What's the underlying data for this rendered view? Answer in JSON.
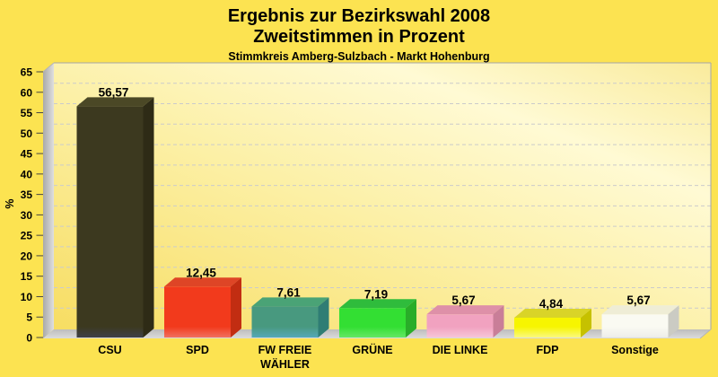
{
  "chart_data": {
    "type": "bar",
    "style": "3d-column",
    "title": "Ergebnis zur Bezirkswahl 2008",
    "subtitle": "Zweitstimmen in Prozent",
    "caption": "Stimmkreis Amberg-Sulzbach - Markt Hohenburg",
    "ylabel": "%",
    "ylim": [
      0,
      65
    ],
    "ytick_step": 5,
    "grid": "dashed-horizontal",
    "legend": "none",
    "categories": [
      "CSU",
      "SPD",
      "FW FREIE WÄHLER",
      "GRÜNE",
      "DIE LINKE",
      "FDP",
      "Sonstige"
    ],
    "categories_display": [
      [
        "CSU"
      ],
      [
        "SPD"
      ],
      [
        "FW FREIE",
        "WÄHLER"
      ],
      [
        "GRÜNE"
      ],
      [
        "DIE LINKE"
      ],
      [
        "FDP"
      ],
      [
        "Sonstige"
      ]
    ],
    "values": [
      56.57,
      12.45,
      7.61,
      7.19,
      5.67,
      4.84,
      5.67
    ],
    "value_labels": [
      "56,57",
      "12,45",
      "7,61",
      "7,19",
      "5,67",
      "4,84",
      "5,67"
    ],
    "bar_styles": [
      {
        "name": "CSU",
        "front": "#3C391F",
        "top": "#4B4826",
        "side": "#2E2B16",
        "bottom": "#3E4048"
      },
      {
        "name": "SPD",
        "front": "#F23A1C",
        "top": "#DE4526",
        "side": "#C22D12",
        "bottom": "#F17060"
      },
      {
        "name": "FW",
        "front": "#48997F",
        "top": "#4AA376",
        "side": "#2F7D74",
        "bottom": "#55A8B8"
      },
      {
        "name": "GRUENE",
        "front": "#33DF33",
        "top": "#2FBC3C",
        "side": "#29AD29",
        "bottom": "#64E764"
      },
      {
        "name": "LINKE",
        "front": "#F1A2C0",
        "top": "#DE90A8",
        "side": "#C97E98",
        "bottom": "#F6C6D8"
      },
      {
        "name": "FDP",
        "front": "#F7F500",
        "top": "#D9D428",
        "side": "#C6C100",
        "bottom": "#FAF97E"
      },
      {
        "name": "Sonstige",
        "front": "#FAFAF2",
        "top": "#EFEDD6",
        "side": "#CBCBC3",
        "bottom": "#EDEDE9"
      }
    ],
    "colors": {
      "page_background": "#FCE351",
      "plot_gradient": [
        "#F7DD62",
        "#FCF0A6",
        "#FFFAD4",
        "#F9EB9C"
      ],
      "wall_grey_dark": "#A9A9A9",
      "wall_grey_light": "#DFDFDF",
      "gridline": "#CBCBCB",
      "frame_border": "#A6A6A6",
      "text": "#000000"
    }
  }
}
